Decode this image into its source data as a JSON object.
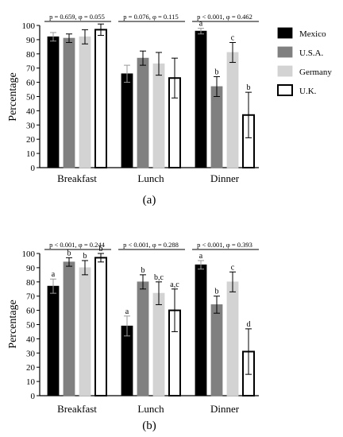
{
  "legend": [
    {
      "name": "Mexico",
      "color": "#000000",
      "stroke": "#000000"
    },
    {
      "name": "U.S.A.",
      "color": "#808080",
      "stroke": "#808080"
    },
    {
      "name": "Germany",
      "color": "#d3d3d3",
      "stroke": "#d3d3d3"
    },
    {
      "name": "U.K.",
      "color": "#ffffff",
      "stroke": "#000000"
    }
  ],
  "chart_data": [
    {
      "type": "bar",
      "panel_label": "(a)",
      "ylabel": "Percentage",
      "ylim": [
        0,
        100
      ],
      "yticks": [
        0,
        10,
        20,
        30,
        40,
        50,
        60,
        70,
        80,
        90,
        100
      ],
      "categories": [
        "Breakfast",
        "Lunch",
        "Dinner"
      ],
      "series": [
        {
          "name": "Mexico",
          "values": [
            92,
            66,
            96
          ],
          "errors": [
            3,
            6,
            2
          ]
        },
        {
          "name": "U.S.A.",
          "values": [
            91,
            77,
            57
          ],
          "errors": [
            3,
            5,
            7
          ]
        },
        {
          "name": "Germany",
          "values": [
            92,
            73,
            81
          ],
          "errors": [
            5,
            8,
            7
          ]
        },
        {
          "name": "U.K.",
          "values": [
            97,
            63,
            37
          ],
          "errors": [
            4,
            14,
            16
          ]
        }
      ],
      "significance": [
        "p = 0.659, φ = 0.055",
        "p = 0.076, φ = 0.115",
        "p < 0.001, φ = 0.462"
      ],
      "letters": [
        [
          "",
          "",
          "",
          ""
        ],
        [
          "",
          "",
          "",
          ""
        ],
        [
          "a",
          "b",
          "c",
          "b"
        ]
      ]
    },
    {
      "type": "bar",
      "panel_label": "(b)",
      "ylabel": "Percentage",
      "ylim": [
        0,
        100
      ],
      "yticks": [
        0,
        10,
        20,
        30,
        40,
        50,
        60,
        70,
        80,
        90,
        100
      ],
      "categories": [
        "Breakfast",
        "Lunch",
        "Dinner"
      ],
      "series": [
        {
          "name": "Mexico",
          "values": [
            77,
            49,
            92
          ],
          "errors": [
            5,
            7,
            3
          ]
        },
        {
          "name": "U.S.A.",
          "values": [
            94,
            80,
            64
          ],
          "errors": [
            3,
            5,
            6
          ]
        },
        {
          "name": "Germany",
          "values": [
            90,
            72,
            80
          ],
          "errors": [
            5,
            8,
            7
          ]
        },
        {
          "name": "U.K.",
          "values": [
            97,
            60,
            31
          ],
          "errors": [
            3,
            15,
            16
          ]
        }
      ],
      "significance": [
        "p < 0.001, φ = 0.244",
        "p < 0.001, φ = 0.288",
        "p < 0.001, φ = 0.393"
      ],
      "letters": [
        [
          "a",
          "b",
          "b",
          "b"
        ],
        [
          "a",
          "b",
          "b,c",
          "a,c"
        ],
        [
          "a",
          "b",
          "c",
          "d"
        ]
      ]
    }
  ]
}
